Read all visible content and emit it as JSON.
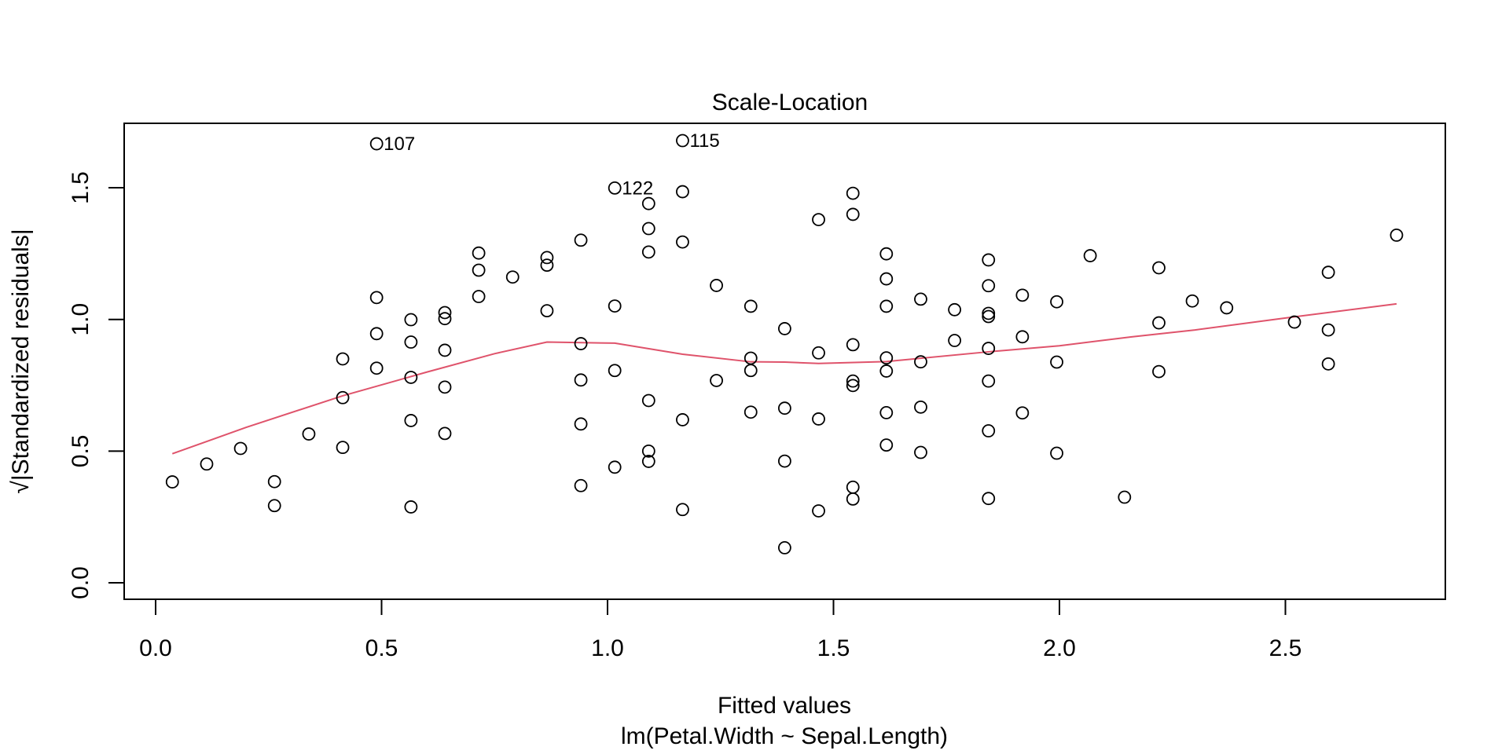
{
  "chart_data": {
    "type": "scatter",
    "title": "Scale-Location",
    "xlabel": "Fitted values",
    "sublabel": "lm(Petal.Width ~ Sepal.Length)",
    "ylabel": "√|Standardized residuals|",
    "xlim": [
      -0.07,
      2.85
    ],
    "ylim": [
      -0.05,
      1.76
    ],
    "xticks": [
      {
        "value": 0.0,
        "label": "0.0"
      },
      {
        "value": 0.5,
        "label": "0.5"
      },
      {
        "value": 1.0,
        "label": "1.0"
      },
      {
        "value": 1.5,
        "label": "1.5"
      },
      {
        "value": 2.0,
        "label": "2.0"
      },
      {
        "value": 2.5,
        "label": "2.5"
      }
    ],
    "yticks": [
      {
        "value": 0.0,
        "label": "0.0"
      },
      {
        "value": 0.5,
        "label": "0.5"
      },
      {
        "value": 1.0,
        "label": "1.0"
      },
      {
        "value": 1.5,
        "label": "1.5"
      }
    ],
    "grid": false,
    "colors": {
      "points": "#000000",
      "smoother": "#DF536B",
      "frame": "#000000"
    },
    "points": [
      [
        0.037,
        0.383
      ],
      [
        0.113,
        0.451
      ],
      [
        0.188,
        0.51
      ],
      [
        0.263,
        0.384
      ],
      [
        0.263,
        0.293
      ],
      [
        0.339,
        0.565
      ],
      [
        0.414,
        0.85
      ],
      [
        0.414,
        0.703
      ],
      [
        0.414,
        0.514
      ],
      [
        0.489,
        1.667
      ],
      [
        0.489,
        1.083
      ],
      [
        0.489,
        0.946
      ],
      [
        0.489,
        0.815
      ],
      [
        0.565,
        0.999
      ],
      [
        0.565,
        0.914
      ],
      [
        0.565,
        0.78
      ],
      [
        0.565,
        0.616
      ],
      [
        0.565,
        0.288
      ],
      [
        0.64,
        1.026
      ],
      [
        0.64,
        1.003
      ],
      [
        0.64,
        0.883
      ],
      [
        0.64,
        0.743
      ],
      [
        0.64,
        0.567
      ],
      [
        0.715,
        1.252
      ],
      [
        0.715,
        1.187
      ],
      [
        0.715,
        1.087
      ],
      [
        0.79,
        1.161
      ],
      [
        0.866,
        1.235
      ],
      [
        0.866,
        1.206
      ],
      [
        0.866,
        1.033
      ],
      [
        0.941,
        1.301
      ],
      [
        0.941,
        0.908
      ],
      [
        0.941,
        0.77
      ],
      [
        0.941,
        0.603
      ],
      [
        0.941,
        0.369
      ],
      [
        1.016,
        1.499
      ],
      [
        1.016,
        1.051
      ],
      [
        1.016,
        0.806
      ],
      [
        1.016,
        0.439
      ],
      [
        1.091,
        1.44
      ],
      [
        1.091,
        1.345
      ],
      [
        1.091,
        1.256
      ],
      [
        1.091,
        0.692
      ],
      [
        1.091,
        0.5
      ],
      [
        1.091,
        0.461
      ],
      [
        1.166,
        1.679
      ],
      [
        1.166,
        1.485
      ],
      [
        1.166,
        1.294
      ],
      [
        1.166,
        0.619
      ],
      [
        1.166,
        0.278
      ],
      [
        1.241,
        1.129
      ],
      [
        1.241,
        0.768
      ],
      [
        1.317,
        1.05
      ],
      [
        1.317,
        0.853
      ],
      [
        1.317,
        0.806
      ],
      [
        1.317,
        0.648
      ],
      [
        1.392,
        0.965
      ],
      [
        1.392,
        0.663
      ],
      [
        1.392,
        0.462
      ],
      [
        1.392,
        0.133
      ],
      [
        1.467,
        1.379
      ],
      [
        1.467,
        0.873
      ],
      [
        1.467,
        0.622
      ],
      [
        1.467,
        0.273
      ],
      [
        1.543,
        1.479
      ],
      [
        1.543,
        1.399
      ],
      [
        1.543,
        0.904
      ],
      [
        1.543,
        0.766
      ],
      [
        1.543,
        0.749
      ],
      [
        1.543,
        0.363
      ],
      [
        1.543,
        0.318
      ],
      [
        1.617,
        1.249
      ],
      [
        1.617,
        1.154
      ],
      [
        1.617,
        1.05
      ],
      [
        1.617,
        0.854
      ],
      [
        1.617,
        0.804
      ],
      [
        1.617,
        0.646
      ],
      [
        1.617,
        0.523
      ],
      [
        1.693,
        1.077
      ],
      [
        1.693,
        0.839
      ],
      [
        1.693,
        0.667
      ],
      [
        1.693,
        0.495
      ],
      [
        1.768,
        1.037
      ],
      [
        1.768,
        0.92
      ],
      [
        1.843,
        1.226
      ],
      [
        1.843,
        1.128
      ],
      [
        1.843,
        1.023
      ],
      [
        1.843,
        1.011
      ],
      [
        1.843,
        0.89
      ],
      [
        1.843,
        0.766
      ],
      [
        1.843,
        0.577
      ],
      [
        1.843,
        0.32
      ],
      [
        1.918,
        1.092
      ],
      [
        1.918,
        0.934
      ],
      [
        1.918,
        0.645
      ],
      [
        1.994,
        1.067
      ],
      [
        1.994,
        0.838
      ],
      [
        1.994,
        0.492
      ],
      [
        2.068,
        1.242
      ],
      [
        2.144,
        0.325
      ],
      [
        2.22,
        1.196
      ],
      [
        2.22,
        0.987
      ],
      [
        2.22,
        0.802
      ],
      [
        2.294,
        1.07
      ],
      [
        2.37,
        1.044
      ],
      [
        2.52,
        0.99
      ],
      [
        2.595,
        1.179
      ],
      [
        2.595,
        0.96
      ],
      [
        2.595,
        0.831
      ],
      [
        2.746,
        1.32
      ]
    ],
    "point_labels": [
      {
        "x": 0.489,
        "y": 1.667,
        "label": "107"
      },
      {
        "x": 1.166,
        "y": 1.679,
        "label": "115"
      },
      {
        "x": 1.016,
        "y": 1.499,
        "label": "122"
      }
    ],
    "smoother": [
      [
        0.037,
        0.49
      ],
      [
        0.2,
        0.59
      ],
      [
        0.414,
        0.71
      ],
      [
        0.6,
        0.8
      ],
      [
        0.75,
        0.87
      ],
      [
        0.866,
        0.914
      ],
      [
        1.016,
        0.91
      ],
      [
        1.166,
        0.868
      ],
      [
        1.317,
        0.839
      ],
      [
        1.392,
        0.838
      ],
      [
        1.467,
        0.833
      ],
      [
        1.617,
        0.84
      ],
      [
        1.843,
        0.877
      ],
      [
        2.0,
        0.9
      ],
      [
        2.16,
        0.934
      ],
      [
        2.3,
        0.96
      ],
      [
        2.52,
        1.01
      ],
      [
        2.746,
        1.059
      ]
    ]
  }
}
